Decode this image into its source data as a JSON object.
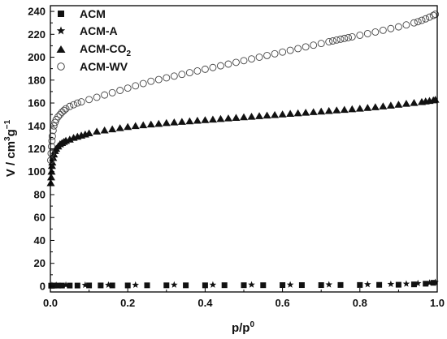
{
  "chart_data": {
    "type": "scatter",
    "xlabel": "p/p",
    "xlabel_sup": "0",
    "ylabel": "V / cm",
    "ylabel_sup1": "3",
    "ylabel_mid": "g",
    "ylabel_sup2": "−1",
    "xlim": [
      0.0,
      1.0
    ],
    "ylim": [
      -5,
      245
    ],
    "xticks": [
      "0.0",
      "0.2",
      "0.4",
      "0.6",
      "0.8",
      "1.0"
    ],
    "yticks": [
      "0",
      "20",
      "40",
      "60",
      "80",
      "100",
      "120",
      "140",
      "160",
      "180",
      "200",
      "220",
      "240"
    ],
    "legend_position": "top-left",
    "series": [
      {
        "name": "ACM",
        "marker": "square",
        "x": [
          0.002,
          0.005,
          0.01,
          0.02,
          0.03,
          0.05,
          0.07,
          0.1,
          0.13,
          0.16,
          0.2,
          0.25,
          0.3,
          0.35,
          0.4,
          0.45,
          0.5,
          0.55,
          0.6,
          0.65,
          0.7,
          0.75,
          0.8,
          0.85,
          0.9,
          0.94,
          0.97,
          0.99
        ],
        "y": [
          0.5,
          0.5,
          0.6,
          0.6,
          0.6,
          0.6,
          0.6,
          0.7,
          0.7,
          0.7,
          0.7,
          0.8,
          0.8,
          0.8,
          0.8,
          0.9,
          0.9,
          0.9,
          1.0,
          1.0,
          1.0,
          1.1,
          1.1,
          1.2,
          1.3,
          1.6,
          2.2,
          3.0
        ]
      },
      {
        "name": "ACM-A",
        "marker": "star",
        "x": [
          0.004,
          0.015,
          0.04,
          0.09,
          0.15,
          0.22,
          0.32,
          0.42,
          0.52,
          0.62,
          0.72,
          0.82,
          0.88,
          0.92,
          0.95,
          0.98,
          0.995
        ],
        "y": [
          0.8,
          0.9,
          1.0,
          1.0,
          1.1,
          1.1,
          1.2,
          1.2,
          1.3,
          1.3,
          1.4,
          1.6,
          1.8,
          2.1,
          2.5,
          3.0,
          3.5
        ]
      },
      {
        "name": "ACM-CO",
        "name_sub": "2",
        "marker": "triangle",
        "x": [
          0.001,
          0.002,
          0.003,
          0.004,
          0.005,
          0.007,
          0.009,
          0.012,
          0.015,
          0.02,
          0.025,
          0.03,
          0.035,
          0.04,
          0.05,
          0.06,
          0.07,
          0.08,
          0.09,
          0.1,
          0.12,
          0.14,
          0.16,
          0.18,
          0.2,
          0.22,
          0.24,
          0.26,
          0.28,
          0.3,
          0.32,
          0.34,
          0.36,
          0.38,
          0.4,
          0.42,
          0.44,
          0.46,
          0.48,
          0.5,
          0.52,
          0.54,
          0.56,
          0.58,
          0.6,
          0.62,
          0.64,
          0.66,
          0.68,
          0.7,
          0.72,
          0.74,
          0.76,
          0.78,
          0.8,
          0.82,
          0.84,
          0.86,
          0.88,
          0.9,
          0.92,
          0.94,
          0.96,
          0.97,
          0.98,
          0.99,
          0.995
        ],
        "y": [
          90,
          95,
          100,
          105,
          108,
          112,
          115,
          118,
          120,
          122,
          124,
          125,
          126,
          127,
          128,
          129.5,
          130.5,
          131.5,
          132.5,
          133.5,
          135,
          136,
          137,
          138,
          139,
          139.8,
          140.5,
          141.2,
          141.8,
          142.5,
          143,
          143.5,
          144,
          144.5,
          145,
          145.5,
          146,
          146.5,
          147,
          147.5,
          148,
          148.5,
          149,
          149.5,
          150,
          150.5,
          151,
          151.5,
          152,
          152.5,
          153,
          153.5,
          154,
          154.5,
          155,
          155.7,
          156.3,
          157,
          157.7,
          158.5,
          159.3,
          160,
          160.8,
          161.3,
          161.8,
          162.3,
          162.8
        ]
      },
      {
        "name": "ACM-WV",
        "marker": "circle",
        "x": [
          0.001,
          0.002,
          0.003,
          0.004,
          0.005,
          0.007,
          0.009,
          0.012,
          0.015,
          0.02,
          0.025,
          0.03,
          0.035,
          0.04,
          0.05,
          0.06,
          0.07,
          0.08,
          0.1,
          0.12,
          0.14,
          0.16,
          0.18,
          0.2,
          0.22,
          0.24,
          0.26,
          0.28,
          0.3,
          0.32,
          0.34,
          0.36,
          0.38,
          0.4,
          0.42,
          0.44,
          0.46,
          0.48,
          0.5,
          0.52,
          0.54,
          0.56,
          0.58,
          0.6,
          0.62,
          0.64,
          0.66,
          0.68,
          0.7,
          0.72,
          0.73,
          0.74,
          0.75,
          0.76,
          0.77,
          0.78,
          0.8,
          0.82,
          0.84,
          0.86,
          0.88,
          0.9,
          0.92,
          0.94,
          0.95,
          0.96,
          0.97,
          0.98,
          0.99,
          0.995
        ],
        "y": [
          110,
          116,
          122,
          127,
          131,
          136,
          140,
          143,
          145.5,
          148,
          150,
          152,
          153.5,
          155,
          157,
          158.5,
          160,
          161,
          163,
          165,
          167,
          169,
          171,
          173,
          175,
          177,
          179,
          180.5,
          182,
          183.5,
          185,
          186.5,
          188,
          189.5,
          191,
          192.5,
          194,
          195.5,
          197,
          198.5,
          200,
          201.5,
          203,
          204.5,
          206,
          207.5,
          209,
          210.5,
          212,
          213.5,
          214.2,
          215,
          215.7,
          216.4,
          217.1,
          217.8,
          219.2,
          220.6,
          222,
          223.5,
          225,
          226.5,
          228.2,
          230,
          231,
          232.2,
          233.5,
          235,
          236.5,
          237.5
        ]
      }
    ]
  }
}
